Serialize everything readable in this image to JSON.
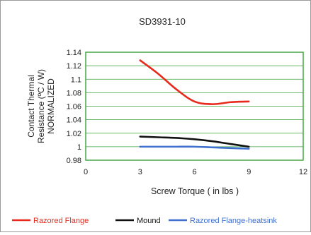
{
  "colors": {
    "plot_border": "#39a339",
    "gridline": "#39a339",
    "series": [
      "#e8291c",
      "#111111",
      "#3f6fcf"
    ]
  },
  "chart_data": {
    "type": "line",
    "title": "SD3931-10",
    "xlabel": "Screw Torque ( in lbs )",
    "ylabel_lines": [
      "Contact Thermal",
      "Resistance (ºC / W)",
      "NORMALIZED"
    ],
    "xlim": [
      0,
      12
    ],
    "ylim": [
      0.98,
      1.14
    ],
    "x_ticks": [
      0,
      3,
      6,
      9,
      12
    ],
    "y_ticks": [
      0.98,
      1,
      1.02,
      1.04,
      1.06,
      1.08,
      1.1,
      1.12,
      1.14
    ],
    "x_tick_labels": [
      "0",
      "3",
      "6",
      "9",
      "12"
    ],
    "y_tick_labels": [
      "0.98",
      "1",
      "1.02",
      "1.04",
      "1.06",
      "1.08",
      "1.1",
      "1.12",
      "1.14"
    ],
    "grid": "horizontal",
    "legend_position": "bottom",
    "series": [
      {
        "name": "Razored Flange",
        "x": [
          3,
          4,
          5,
          6,
          7,
          8,
          9
        ],
        "y": [
          1.128,
          1.108,
          1.085,
          1.067,
          1.063,
          1.066,
          1.067
        ]
      },
      {
        "name": "Mound",
        "x": [
          3,
          4,
          5,
          6,
          7,
          8,
          9
        ],
        "y": [
          1.015,
          1.014,
          1.013,
          1.011,
          1.008,
          1.004,
          1.0
        ]
      },
      {
        "name": "Razored Flange-heatsink",
        "x": [
          3,
          4,
          5,
          6,
          7,
          8,
          9
        ],
        "y": [
          1.0,
          1.0,
          1.0,
          1.0,
          0.999,
          0.998,
          0.997
        ]
      }
    ]
  }
}
